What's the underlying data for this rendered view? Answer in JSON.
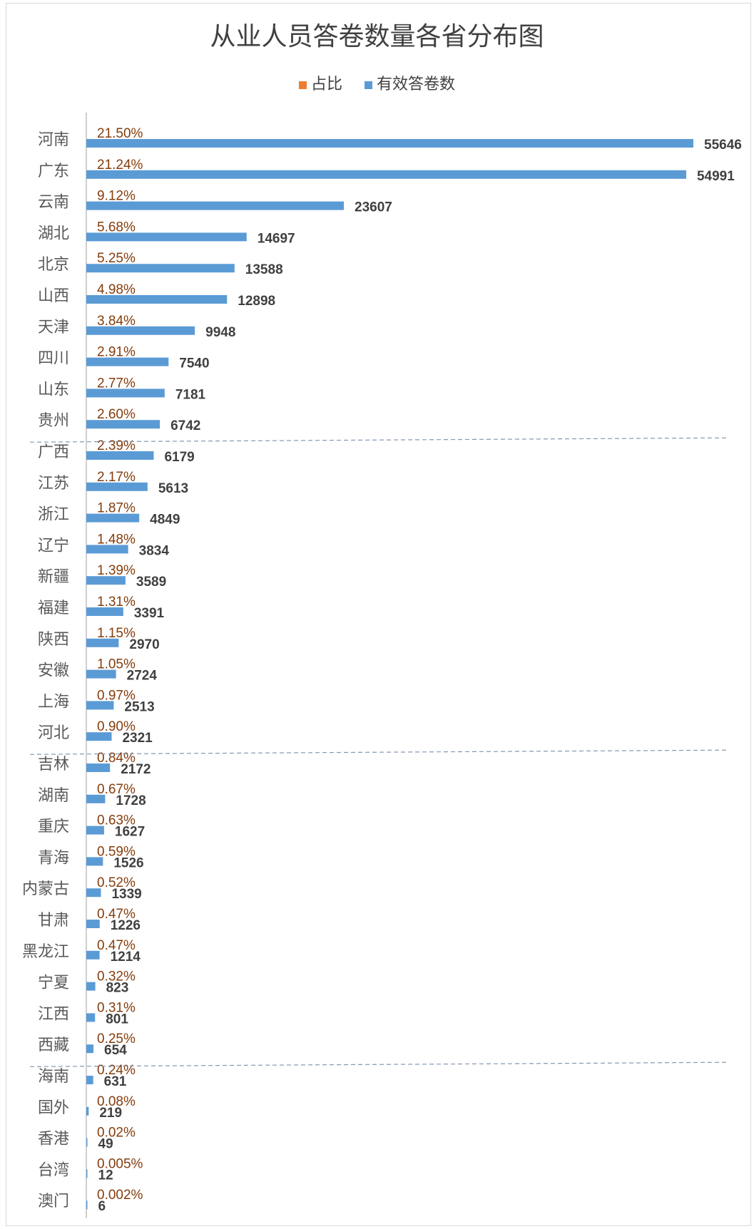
{
  "chart_data": {
    "type": "bar",
    "title": "从业人员答卷数量各省分布图",
    "legend": [
      "占比",
      "有效答卷数"
    ],
    "legend_position": "top",
    "xlim": [
      0,
      55646
    ],
    "grid": false,
    "colors": {
      "share": "#ed7d31",
      "share_label": "#843c0c",
      "count": "#5b9bd5",
      "count_label": "#404040",
      "axis": "#bfbfbf",
      "divider": "#8497b0"
    },
    "categories": [
      "河南",
      "广东",
      "云南",
      "湖北",
      "北京",
      "山西",
      "天津",
      "四川",
      "山东",
      "贵州",
      "广西",
      "江苏",
      "浙江",
      "辽宁",
      "新疆",
      "福建",
      "陕西",
      "安徽",
      "上海",
      "河北",
      "吉林",
      "湖南",
      "重庆",
      "青海",
      "内蒙古",
      "甘肃",
      "黑龙江",
      "宁夏",
      "江西",
      "西藏",
      "海南",
      "国外",
      "香港",
      "台湾",
      "澳门"
    ],
    "series": [
      {
        "name": "占比",
        "values": [
          "21.50%",
          "21.24%",
          "9.12%",
          "5.68%",
          "5.25%",
          "4.98%",
          "3.84%",
          "2.91%",
          "2.77%",
          "2.60%",
          "2.39%",
          "2.17%",
          "1.87%",
          "1.48%",
          "1.39%",
          "1.31%",
          "1.15%",
          "1.05%",
          "0.97%",
          "0.90%",
          "0.84%",
          "0.67%",
          "0.63%",
          "0.59%",
          "0.52%",
          "0.47%",
          "0.47%",
          "0.32%",
          "0.31%",
          "0.25%",
          "0.24%",
          "0.08%",
          "0.02%",
          "0.005%",
          "0.002%"
        ]
      },
      {
        "name": "有效答卷数",
        "values": [
          55646,
          54991,
          23607,
          14697,
          13588,
          12898,
          9948,
          7540,
          7181,
          6742,
          6179,
          5613,
          4849,
          3834,
          3589,
          3391,
          2970,
          2724,
          2513,
          2321,
          2172,
          1728,
          1627,
          1526,
          1339,
          1226,
          1214,
          823,
          801,
          654,
          631,
          219,
          49,
          12,
          6
        ]
      }
    ],
    "group_dividers_after": [
      "贵州",
      "河北",
      "西藏"
    ]
  }
}
